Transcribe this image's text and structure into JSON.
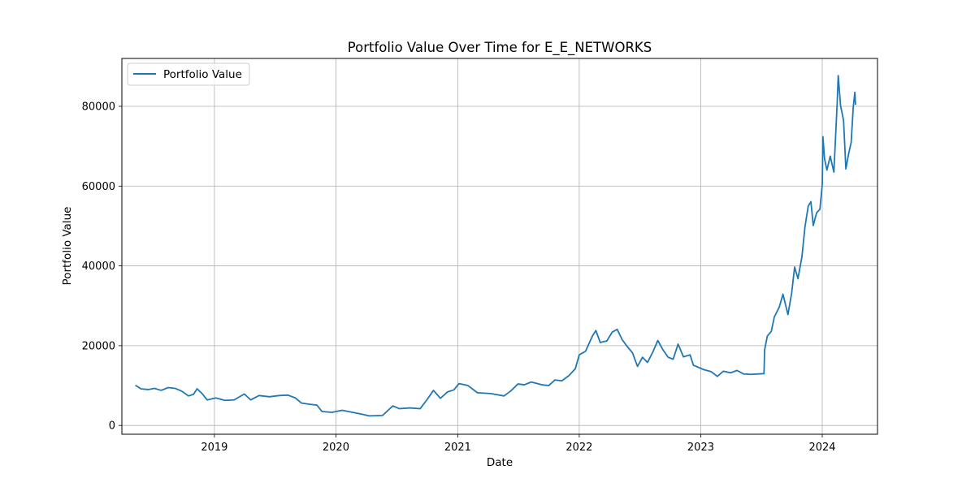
{
  "chart_data": {
    "type": "line",
    "title": "Portfolio Value Over Time for E_E_NETWORKS",
    "xlabel": "Date",
    "ylabel": "Portfolio Value",
    "x_tick_labels": [
      "2019",
      "2020",
      "2021",
      "2022",
      "2023",
      "2024"
    ],
    "y_tick_labels": [
      "0",
      "20000",
      "40000",
      "60000",
      "80000"
    ],
    "y_ticks": [
      0,
      20000,
      40000,
      60000,
      80000
    ],
    "xlim": [
      "2018-03-29",
      "2024-06-15"
    ],
    "ylim": [
      -2200,
      92000
    ],
    "grid": true,
    "legend_position": "top-left",
    "series": [
      {
        "name": "Portfolio Value",
        "color": "#1f77b4",
        "points": [
          [
            "2018-05-10",
            10000
          ],
          [
            "2018-05-25",
            9200
          ],
          [
            "2018-06-15",
            9000
          ],
          [
            "2018-07-05",
            9300
          ],
          [
            "2018-07-25",
            8800
          ],
          [
            "2018-08-15",
            9500
          ],
          [
            "2018-09-05",
            9300
          ],
          [
            "2018-09-25",
            8600
          ],
          [
            "2018-10-15",
            7400
          ],
          [
            "2018-10-30",
            7800
          ],
          [
            "2018-11-10",
            9200
          ],
          [
            "2018-11-25",
            8000
          ],
          [
            "2018-12-10",
            6400
          ],
          [
            "2019-01-05",
            6900
          ],
          [
            "2019-02-01",
            6300
          ],
          [
            "2019-03-01",
            6400
          ],
          [
            "2019-04-01",
            7900
          ],
          [
            "2019-04-20",
            6400
          ],
          [
            "2019-05-15",
            7500
          ],
          [
            "2019-06-15",
            7200
          ],
          [
            "2019-07-15",
            7500
          ],
          [
            "2019-08-10",
            7600
          ],
          [
            "2019-09-01",
            6900
          ],
          [
            "2019-09-20",
            5600
          ],
          [
            "2019-10-15",
            5300
          ],
          [
            "2019-11-05",
            5100
          ],
          [
            "2019-11-20",
            3500
          ],
          [
            "2019-12-20",
            3300
          ],
          [
            "2020-01-20",
            3800
          ],
          [
            "2020-02-20",
            3300
          ],
          [
            "2020-03-20",
            2800
          ],
          [
            "2020-04-10",
            2400
          ],
          [
            "2020-05-20",
            2500
          ],
          [
            "2020-06-20",
            4900
          ],
          [
            "2020-07-10",
            4200
          ],
          [
            "2020-08-10",
            4400
          ],
          [
            "2020-09-10",
            4200
          ],
          [
            "2020-10-01",
            6500
          ],
          [
            "2020-10-20",
            8800
          ],
          [
            "2020-11-10",
            6800
          ],
          [
            "2020-12-01",
            8400
          ],
          [
            "2020-12-20",
            8900
          ],
          [
            "2021-01-05",
            10500
          ],
          [
            "2021-02-01",
            10000
          ],
          [
            "2021-03-01",
            8200
          ],
          [
            "2021-04-10",
            8000
          ],
          [
            "2021-05-20",
            7400
          ],
          [
            "2021-06-10",
            8700
          ],
          [
            "2021-07-01",
            10400
          ],
          [
            "2021-07-20",
            10200
          ],
          [
            "2021-08-10",
            10900
          ],
          [
            "2021-09-10",
            10200
          ],
          [
            "2021-10-01",
            10000
          ],
          [
            "2021-10-20",
            11400
          ],
          [
            "2021-11-10",
            11200
          ],
          [
            "2021-12-01",
            12500
          ],
          [
            "2021-12-20",
            14200
          ],
          [
            "2022-01-01",
            17700
          ],
          [
            "2022-01-20",
            18600
          ],
          [
            "2022-02-10",
            22500
          ],
          [
            "2022-02-20",
            23800
          ],
          [
            "2022-03-05",
            20800
          ],
          [
            "2022-03-25",
            21200
          ],
          [
            "2022-04-10",
            23400
          ],
          [
            "2022-04-25",
            24100
          ],
          [
            "2022-05-10",
            21500
          ],
          [
            "2022-05-25",
            19800
          ],
          [
            "2022-06-10",
            18200
          ],
          [
            "2022-06-25",
            14800
          ],
          [
            "2022-07-10",
            17100
          ],
          [
            "2022-07-25",
            15800
          ],
          [
            "2022-08-10",
            18400
          ],
          [
            "2022-08-25",
            21300
          ],
          [
            "2022-09-10",
            18900
          ],
          [
            "2022-09-25",
            17100
          ],
          [
            "2022-10-10",
            16600
          ],
          [
            "2022-10-25",
            20400
          ],
          [
            "2022-11-10",
            17200
          ],
          [
            "2022-11-30",
            17700
          ],
          [
            "2022-12-10",
            15100
          ],
          [
            "2023-01-10",
            14000
          ],
          [
            "2023-02-01",
            13500
          ],
          [
            "2023-02-20",
            12300
          ],
          [
            "2023-03-10",
            13600
          ],
          [
            "2023-04-01",
            13200
          ],
          [
            "2023-04-20",
            13800
          ],
          [
            "2023-05-10",
            12900
          ],
          [
            "2023-06-01",
            12800
          ],
          [
            "2023-07-10",
            13000
          ],
          [
            "2023-07-12",
            19000
          ],
          [
            "2023-07-20",
            22400
          ],
          [
            "2023-08-01",
            23600
          ],
          [
            "2023-08-10",
            27200
          ],
          [
            "2023-08-25",
            29700
          ],
          [
            "2023-09-05",
            32900
          ],
          [
            "2023-09-20",
            27800
          ],
          [
            "2023-10-01",
            33100
          ],
          [
            "2023-10-10",
            39700
          ],
          [
            "2023-10-20",
            36800
          ],
          [
            "2023-11-01",
            42300
          ],
          [
            "2023-11-10",
            49700
          ],
          [
            "2023-11-20",
            55000
          ],
          [
            "2023-11-28",
            56100
          ],
          [
            "2023-12-05",
            50100
          ],
          [
            "2023-12-15",
            53300
          ],
          [
            "2023-12-25",
            54200
          ],
          [
            "2024-01-01",
            60300
          ],
          [
            "2024-01-03",
            72400
          ],
          [
            "2024-01-08",
            66800
          ],
          [
            "2024-01-15",
            64000
          ],
          [
            "2024-01-25",
            67500
          ],
          [
            "2024-02-05",
            63500
          ],
          [
            "2024-02-15",
            81000
          ],
          [
            "2024-02-18",
            87700
          ],
          [
            "2024-02-25",
            80200
          ],
          [
            "2024-03-05",
            76500
          ],
          [
            "2024-03-12",
            64300
          ],
          [
            "2024-03-20",
            68000
          ],
          [
            "2024-03-28",
            71000
          ],
          [
            "2024-04-03",
            79700
          ],
          [
            "2024-04-08",
            83500
          ],
          [
            "2024-04-10",
            80500
          ]
        ]
      }
    ]
  }
}
